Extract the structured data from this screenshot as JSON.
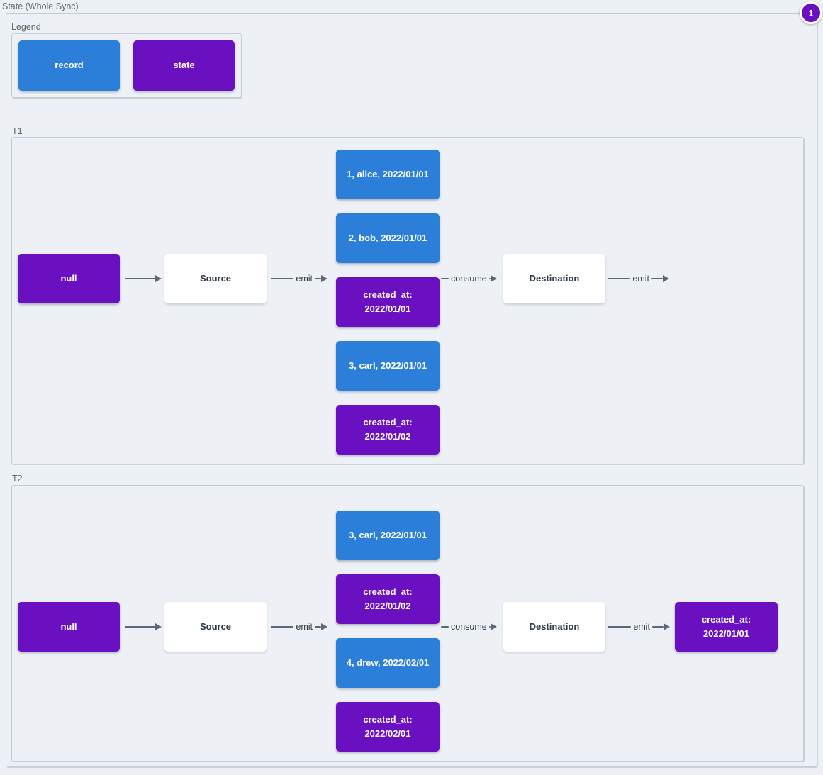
{
  "diagram": {
    "title": "State (Whole Sync)",
    "annotation_badge": "1",
    "colors": {
      "record": "#2b7fd9",
      "state": "#6a10c1",
      "plain_node": "#ffffff",
      "arrow": "#5b6875",
      "background": "#edf0f5",
      "frame_border": "#c5ccd7"
    },
    "legend": {
      "title": "Legend",
      "items": [
        {
          "label": "record",
          "type": "record"
        },
        {
          "label": "state",
          "type": "state"
        }
      ]
    },
    "sections": [
      {
        "label": "T1",
        "input_state": "null",
        "source": "Source",
        "destination": "Destination",
        "edges": {
          "emit_source": "emit",
          "consume": "consume",
          "emit_destination": "emit"
        },
        "messages": [
          {
            "label": "1, alice, 2022/01/01",
            "type": "record"
          },
          {
            "label": "2, bob, 2022/01/01",
            "type": "record"
          },
          {
            "label": "created_at: 2022/01/01",
            "type": "state"
          },
          {
            "label": "3, carl, 2022/01/01",
            "type": "record"
          },
          {
            "label": "created_at: 2022/01/02",
            "type": "state"
          }
        ]
      },
      {
        "label": "T2",
        "input_state": "null",
        "source": "Source",
        "destination": "Destination",
        "edges": {
          "emit_source": "emit",
          "consume": "consume",
          "emit_destination": "emit"
        },
        "messages": [
          {
            "label": "3, carl, 2022/01/01",
            "type": "record"
          },
          {
            "label": "created_at: 2022/01/02",
            "type": "state"
          },
          {
            "label": "4, drew, 2022/02/01",
            "type": "record"
          },
          {
            "label": "created_at: 2022/02/01",
            "type": "state"
          }
        ],
        "output_state": "created_at: 2022/01/01"
      }
    ]
  }
}
